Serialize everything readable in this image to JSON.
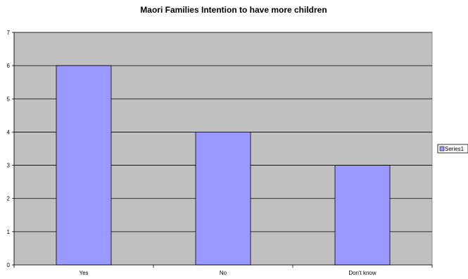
{
  "chart_data": {
    "type": "bar",
    "title": "Maori Families Intention to have more children",
    "categories": [
      "Yes",
      "No",
      "Don't know"
    ],
    "series": [
      {
        "name": "Series1",
        "values": [
          6,
          4,
          3
        ]
      }
    ],
    "ylim": [
      0,
      7
    ],
    "yticks": [
      "0",
      "1",
      "2",
      "3",
      "4",
      "5",
      "6",
      "7"
    ],
    "grid": true,
    "legend": "right",
    "colors": {
      "plot_background": "#c0c0c0",
      "bar_fill": "#9999ff",
      "bar_stroke": "#000000",
      "gridline": "#000000"
    }
  }
}
